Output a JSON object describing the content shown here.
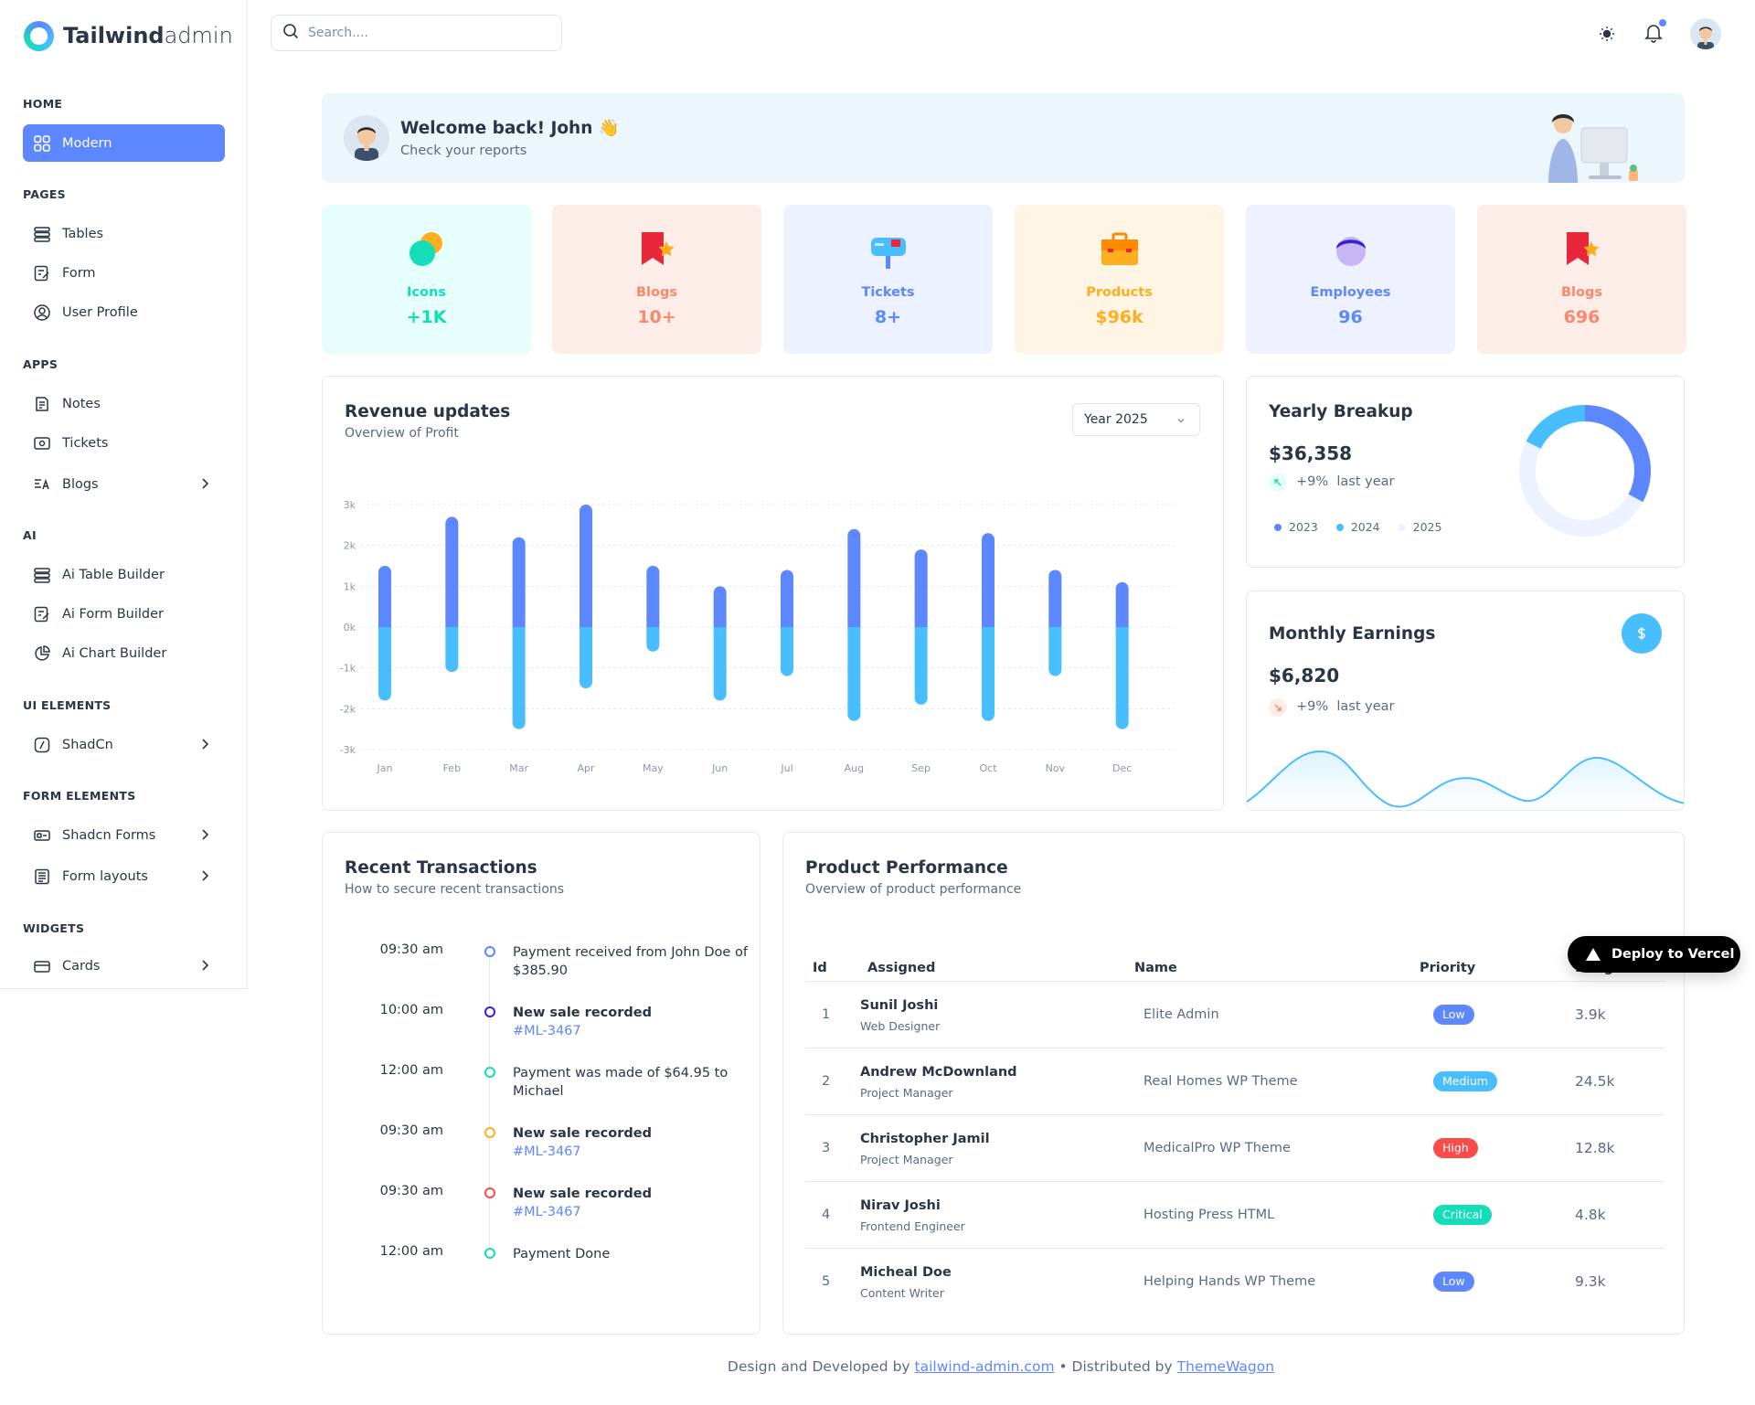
{
  "brand": {
    "name_bold": "Tailwind",
    "name_light": "admin"
  },
  "search": {
    "placeholder": "Search...."
  },
  "sidebar": {
    "sections": [
      "HOME",
      "PAGES",
      "APPS",
      "AI",
      "UI ELEMENTS",
      "FORM ELEMENTS",
      "WIDGETS"
    ],
    "items": {
      "modern": "Modern",
      "tables": "Tables",
      "form": "Form",
      "user_profile": "User Profile",
      "notes": "Notes",
      "tickets": "Tickets",
      "blogs": "Blogs",
      "ai_table": "Ai Table Builder",
      "ai_form": "Ai Form Builder",
      "ai_chart": "Ai Chart Builder",
      "shadcn": "ShadCn",
      "shadcn_forms": "Shadcn Forms",
      "form_layouts": "Form layouts",
      "cards": "Cards"
    }
  },
  "welcome": {
    "title": "Welcome back! John 👋",
    "subtitle": "Check your reports"
  },
  "stats": [
    {
      "label": "Icons",
      "value": "+1K",
      "color": "#13deb9",
      "bg": "#e6fffa",
      "icon": "chat-bubbles-icon"
    },
    {
      "label": "Blogs",
      "value": "10+",
      "color": "#fa896b",
      "bg": "#fdede8",
      "icon": "bookmark-star-icon"
    },
    {
      "label": "Tickets",
      "value": "8+",
      "color": "#5d87ff",
      "bg": "#ecf2ff",
      "icon": "mailbox-icon"
    },
    {
      "label": "Products",
      "value": "$96k",
      "color": "#ffae1f",
      "bg": "#fef5e5",
      "icon": "briefcase-icon"
    },
    {
      "label": "Employees",
      "value": "96",
      "color": "#5d87ff",
      "bg": "#eef2ff",
      "icon": "user-head-icon"
    },
    {
      "label": "Blogs",
      "value": "696",
      "color": "#fa896b",
      "bg": "#fdede8",
      "icon": "bookmark-star-icon"
    }
  ],
  "revenue": {
    "title": "Revenue updates",
    "subtitle": "Overview of Profit",
    "year": "Year 2025"
  },
  "chart_data": {
    "type": "bar",
    "categories": [
      "Jan",
      "Feb",
      "Mar",
      "Apr",
      "May",
      "Jun",
      "Jul",
      "Aug",
      "Sep",
      "Oct",
      "Nov",
      "Dec"
    ],
    "series": [
      {
        "values": [
          1.5,
          2.7,
          2.2,
          3.0,
          1.5,
          1.0,
          1.4,
          2.4,
          1.9,
          2.3,
          1.4,
          1.1
        ],
        "color": "#5d87ff"
      },
      {
        "values": [
          -1.8,
          -1.1,
          -2.5,
          -1.5,
          -0.6,
          -1.8,
          -1.2,
          -2.3,
          -1.9,
          -2.3,
          -1.2,
          -2.5
        ],
        "color": "#49beff"
      }
    ],
    "yticks": [
      "3k",
      "2k",
      "1k",
      "0k",
      "-1k",
      "-2k",
      "-3k"
    ],
    "ylim": [
      -3,
      3
    ]
  },
  "yearly": {
    "title": "Yearly Breakup",
    "amount": "$36,358",
    "change": "+9%",
    "period": "last year",
    "legend": [
      "2023",
      "2024",
      "2025"
    ]
  },
  "monthly": {
    "title": "Monthly Earnings",
    "amount": "$6,820",
    "change": "+9%",
    "period": "last year"
  },
  "transactions": {
    "title": "Recent Transactions",
    "subtitle": "How to secure recent transactions",
    "items": [
      {
        "time": "09:30 am",
        "text": "Payment received from John Doe of $385.90",
        "color": "#5d87ff"
      },
      {
        "time": "10:00 am",
        "text": "New sale recorded",
        "link": "#ML-3467",
        "color": "#3a1fd9"
      },
      {
        "time": "12:00 am",
        "text": "Payment was made of $64.95 to Michael",
        "color": "#13deb9"
      },
      {
        "time": "09:30 am",
        "text": "New sale recorded",
        "link": "#ML-3467",
        "color": "#ffae1f"
      },
      {
        "time": "09:30 am",
        "text": "New sale recorded",
        "link": "#ML-3467",
        "color": "#fa4b4b"
      },
      {
        "time": "12:00 am",
        "text": "Payment Done",
        "color": "#13deb9"
      }
    ]
  },
  "performance": {
    "title": "Product Performance",
    "subtitle": "Overview of product performance",
    "headers": [
      "Id",
      "Assigned",
      "Name",
      "Priority",
      "Budget"
    ],
    "rows": [
      {
        "id": "1",
        "name": "Sunil Joshi",
        "role": "Web Designer",
        "product": "Elite Admin",
        "priority": "Low",
        "color": "#5d87ff",
        "budget": "3.9k"
      },
      {
        "id": "2",
        "name": "Andrew McDownland",
        "role": "Project Manager",
        "product": "Real Homes WP Theme",
        "priority": "Medium",
        "color": "#49beff",
        "budget": "24.5k"
      },
      {
        "id": "3",
        "name": "Christopher Jamil",
        "role": "Project Manager",
        "product": "MedicalPro WP Theme",
        "priority": "High",
        "color": "#fa4b4b",
        "budget": "12.8k"
      },
      {
        "id": "4",
        "name": "Nirav Joshi",
        "role": "Frontend Engineer",
        "product": "Hosting Press HTML",
        "priority": "Critical",
        "color": "#13deb9",
        "budget": "4.8k"
      },
      {
        "id": "5",
        "name": "Micheal Doe",
        "role": "Content Writer",
        "product": "Helping Hands WP Theme",
        "priority": "Low",
        "color": "#5d87ff",
        "budget": "9.3k"
      }
    ]
  },
  "deploy": {
    "label": "Deploy to Vercel"
  },
  "footer": {
    "prefix": "Design and Developed by",
    "link1": "tailwind-admin.com",
    "middle": "• Distributed by",
    "link2": "ThemeWagon"
  }
}
